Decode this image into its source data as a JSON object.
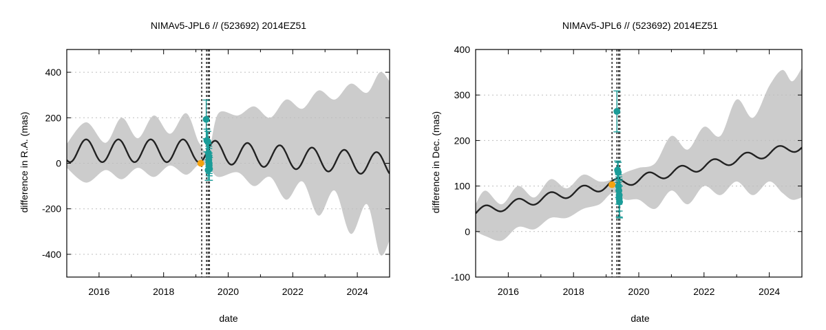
{
  "chart_data": [
    {
      "type": "line",
      "title": "NIMAv5-JPL6 // (523692) 2014EZ51",
      "xlabel": "date",
      "ylabel": "difference in R.A. (mas)",
      "xlim": [
        2015.0,
        2025.0
      ],
      "ylim": [
        -500,
        500
      ],
      "x_ticks": [
        2016,
        2018,
        2020,
        2022,
        2024
      ],
      "y_ticks": [
        -400,
        -200,
        0,
        200,
        400
      ],
      "grid": "horizontal dotted",
      "colors": {
        "band": "#cccccc",
        "curve": "#222222",
        "points": "#1a9c98",
        "orange": "#f5a30f"
      },
      "model": {
        "offset": 55,
        "amplitude": 50,
        "period_years": 1.0,
        "phase_peak": 2015.6,
        "drift_after_2019_per_year": -10
      },
      "uncertainty_band": {
        "x": [
          2015.0,
          2015.6,
          2016.2,
          2016.7,
          2017.2,
          2017.7,
          2018.2,
          2018.7,
          2019.1,
          2019.4,
          2019.7,
          2020.3,
          2020.8,
          2021.3,
          2021.8,
          2022.3,
          2022.8,
          2023.3,
          2023.8,
          2024.3,
          2024.7,
          2025.0
        ],
        "upper": [
          85,
          180,
          90,
          200,
          110,
          210,
          130,
          220,
          90,
          60,
          220,
          210,
          250,
          200,
          280,
          240,
          320,
          280,
          350,
          310,
          400,
          360
        ],
        "lower": [
          -20,
          -85,
          -30,
          -70,
          -20,
          -60,
          -10,
          -50,
          -5,
          -20,
          -60,
          -40,
          -100,
          -60,
          -160,
          -80,
          -230,
          -120,
          -310,
          -180,
          -400,
          -340
        ]
      },
      "vertical_lines": [
        2019.18,
        2019.33,
        2019.38,
        2019.42
      ],
      "orange_points": [
        {
          "x": 2019.15,
          "y": 0
        }
      ],
      "observations": [
        {
          "x": 2019.32,
          "y": 193,
          "err": 85
        },
        {
          "x": 2019.34,
          "y": 100,
          "err": 50
        },
        {
          "x": 2019.37,
          "y": 95,
          "err": 45
        },
        {
          "x": 2019.39,
          "y": 45,
          "err": 40
        },
        {
          "x": 2019.4,
          "y": 30,
          "err": 45
        },
        {
          "x": 2019.4,
          "y": 15,
          "err": 50
        },
        {
          "x": 2019.41,
          "y": 0,
          "err": 45
        },
        {
          "x": 2019.41,
          "y": -10,
          "err": 45
        },
        {
          "x": 2019.42,
          "y": -25,
          "err": 50
        },
        {
          "x": 2019.38,
          "y": -30,
          "err": 45
        }
      ]
    },
    {
      "type": "line",
      "title": "NIMAv5-JPL6 // (523692) 2014EZ51",
      "xlabel": "date",
      "ylabel": "difference in Dec. (mas)",
      "xlim": [
        2015.0,
        2025.0
      ],
      "ylim": [
        -100,
        400
      ],
      "x_ticks": [
        2016,
        2018,
        2020,
        2022,
        2024
      ],
      "y_ticks": [
        -100,
        0,
        100,
        200,
        300,
        400
      ],
      "grid": "horizontal dotted",
      "colors": {
        "band": "#cccccc",
        "curve": "#222222",
        "points": "#1a9c98",
        "orange": "#f5a30f"
      },
      "model": {
        "offset": 43,
        "amplitude": 10,
        "period_years": 1.0,
        "phase_peak": 2015.3,
        "trend_per_year": 14.5
      },
      "uncertainty_band": {
        "x": [
          2015.0,
          2015.3,
          2015.8,
          2016.3,
          2016.8,
          2017.3,
          2017.8,
          2018.3,
          2018.8,
          2019.2,
          2019.6,
          2020.0,
          2020.5,
          2021.0,
          2021.5,
          2022.0,
          2022.5,
          2023.0,
          2023.5,
          2024.0,
          2024.4,
          2024.7,
          2025.0
        ],
        "upper": [
          60,
          90,
          60,
          100,
          75,
          115,
          95,
          125,
          110,
          115,
          130,
          140,
          150,
          210,
          180,
          230,
          210,
          290,
          250,
          320,
          355,
          330,
          360
        ],
        "lower": [
          0,
          -10,
          -20,
          10,
          5,
          30,
          30,
          50,
          60,
          85,
          70,
          70,
          50,
          90,
          60,
          100,
          80,
          110,
          80,
          110,
          85,
          70,
          75
        ]
      },
      "vertical_lines": [
        2019.18,
        2019.33,
        2019.38,
        2019.42
      ],
      "orange_points": [
        {
          "x": 2019.18,
          "y": 103
        }
      ],
      "observations": [
        {
          "x": 2019.33,
          "y": 264,
          "err": 45
        },
        {
          "x": 2019.35,
          "y": 135,
          "err": 20
        },
        {
          "x": 2019.37,
          "y": 130,
          "err": 22
        },
        {
          "x": 2019.38,
          "y": 100,
          "err": 25
        },
        {
          "x": 2019.39,
          "y": 90,
          "err": 30
        },
        {
          "x": 2019.4,
          "y": 80,
          "err": 35
        },
        {
          "x": 2019.4,
          "y": 72,
          "err": 40
        },
        {
          "x": 2019.41,
          "y": 65,
          "err": 35
        }
      ]
    }
  ]
}
